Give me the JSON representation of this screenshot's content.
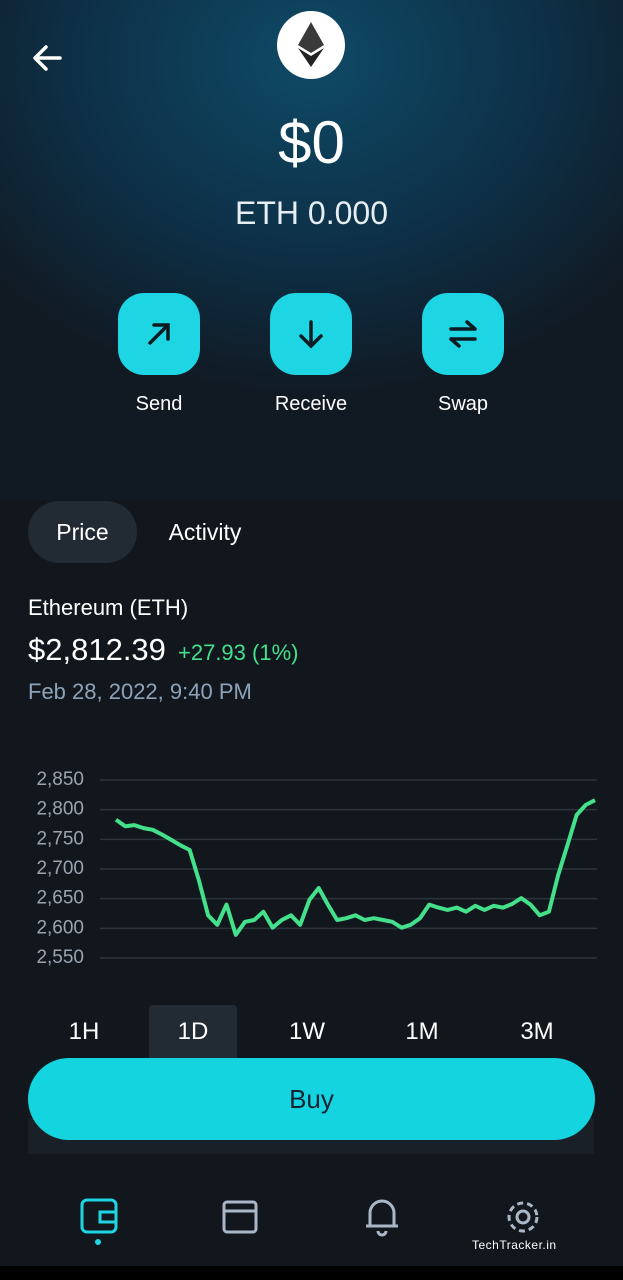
{
  "header": {
    "balance": "$0",
    "balance_eth": "ETH 0.000"
  },
  "actions": [
    "Send",
    "Receive",
    "Swap"
  ],
  "tabs": [
    "Price",
    "Activity"
  ],
  "coin": {
    "name": "Ethereum (ETH)",
    "price": "$2,812.39",
    "change": "+27.93 (1%)",
    "date": "Feb 28, 2022, 9:40 PM"
  },
  "chart_data": {
    "type": "line",
    "color": "#45e08c",
    "grid": true,
    "ylim": [
      2550,
      2850
    ],
    "yticks": [
      {
        "value": 2550,
        "label": "2,550"
      },
      {
        "value": 2600,
        "label": "2,600"
      },
      {
        "value": 2650,
        "label": "2,650"
      },
      {
        "value": 2700,
        "label": "2,700"
      },
      {
        "value": 2750,
        "label": "2,750"
      },
      {
        "value": 2800,
        "label": "2,800"
      },
      {
        "value": 2850,
        "label": "2,850"
      }
    ],
    "values": [
      2783,
      2772,
      2774,
      2769,
      2766,
      2758,
      2749,
      2740,
      2732,
      2681,
      2622,
      2606,
      2640,
      2589,
      2611,
      2614,
      2628,
      2601,
      2614,
      2622,
      2606,
      2648,
      2668,
      2640,
      2614,
      2617,
      2622,
      2614,
      2617,
      2614,
      2611,
      2601,
      2606,
      2617,
      2640,
      2635,
      2631,
      2635,
      2628,
      2638,
      2631,
      2638,
      2635,
      2641,
      2651,
      2640,
      2622,
      2628,
      2690,
      2740,
      2791,
      2808,
      2816
    ]
  },
  "ranges": [
    "1H",
    "1D",
    "1W",
    "1M",
    "3M"
  ],
  "buy": "Buy",
  "watermark": "TechTracker.in"
}
